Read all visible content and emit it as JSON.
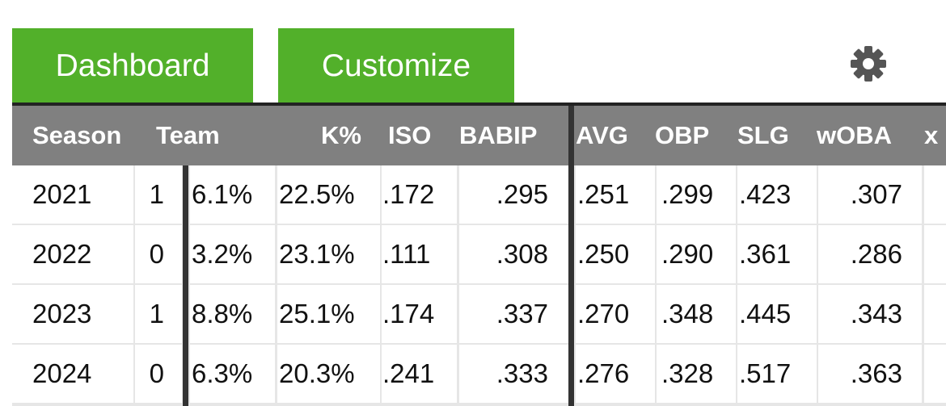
{
  "buttons": [
    "Dashboard",
    "Customize"
  ],
  "table": {
    "header": [
      "Season",
      "Team",
      "K%",
      "ISO",
      "BABIP",
      "AVG",
      "OBP",
      "SLG",
      "wOBA",
      "x"
    ],
    "rows": [
      [
        "2021",
        "1",
        "6.1%",
        "22.5%",
        ".172",
        ".295",
        ".251",
        ".299",
        ".423",
        ".307"
      ],
      [
        "2022",
        "0",
        "3.2%",
        "23.1%",
        ".111",
        ".308",
        ".250",
        ".290",
        ".361",
        ".286"
      ],
      [
        "2023",
        "1",
        "8.8%",
        "25.1%",
        ".174",
        ".337",
        ".270",
        ".348",
        ".445",
        ".343"
      ],
      [
        "2024",
        "0",
        "6.3%",
        "20.3%",
        ".241",
        ".333",
        ".276",
        ".328",
        ".517",
        ".363"
      ]
    ]
  }
}
